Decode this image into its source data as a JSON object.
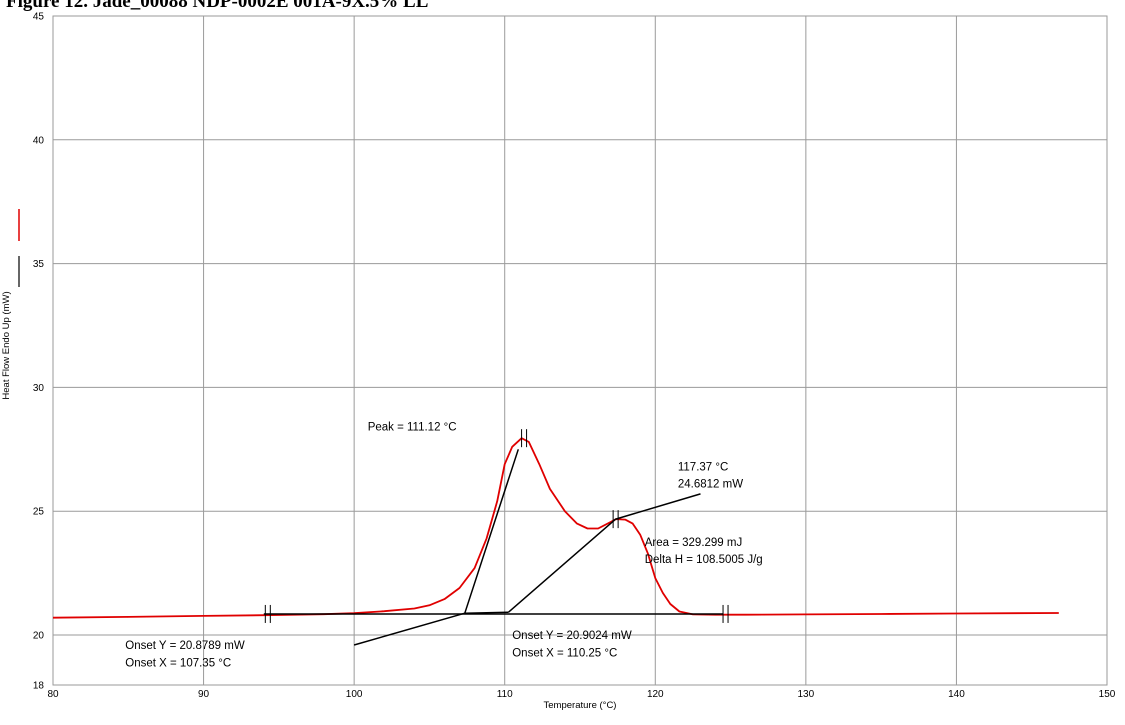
{
  "title": "Figure 12. Jade_00088 NDP-0002E 001A-9X.5% LL",
  "chart_data": {
    "type": "line",
    "title": "Figure 12. Jade_00088 NDP-0002E 001A-9X.5% LL",
    "xlabel": "Temperature (°C)",
    "ylabel": "Heat Flow Endo Up (mW)",
    "xlim": [
      80,
      150
    ],
    "ylim": [
      18,
      45
    ],
    "xticks": [
      80,
      90,
      100,
      110,
      120,
      130,
      140,
      150
    ],
    "yticks": [
      18,
      20,
      25,
      30,
      35,
      40,
      45
    ],
    "grid": true,
    "legend": "left",
    "colors": {
      "series": "#e00000",
      "construction": "#000000",
      "grid": "#9a9a9a"
    },
    "series": [
      {
        "color": "#e00000",
        "x": [
          80,
          85,
          90,
          94,
          98,
          100,
          102,
          104,
          105,
          106,
          107,
          108,
          108.8,
          109.5,
          110,
          110.5,
          111.12,
          111.6,
          112.3,
          113,
          114,
          114.8,
          115.5,
          116.2,
          117,
          117.4,
          118,
          118.5,
          119,
          119.5,
          120,
          120.5,
          121,
          121.6,
          122.5,
          124,
          126,
          130,
          135,
          140,
          146.8
        ],
        "y": [
          20.7,
          20.73,
          20.77,
          20.8,
          20.84,
          20.88,
          20.96,
          21.07,
          21.2,
          21.45,
          21.9,
          22.7,
          23.9,
          25.4,
          26.9,
          27.6,
          27.95,
          27.8,
          26.9,
          25.9,
          25.0,
          24.5,
          24.3,
          24.3,
          24.55,
          24.68,
          24.66,
          24.5,
          24.05,
          23.3,
          22.3,
          21.7,
          21.25,
          20.95,
          20.83,
          20.82,
          20.82,
          20.83,
          20.85,
          20.87,
          20.89
        ]
      },
      {
        "color": "#000000",
        "x": [
          94,
          124.5
        ],
        "y": [
          20.85,
          20.85
        ]
      },
      {
        "color": "#000000",
        "x": [
          107.35,
          110.25
        ],
        "y": [
          20.88,
          20.92
        ]
      },
      {
        "color": "#000000",
        "x": [
          107.35,
          110.9
        ],
        "y": [
          20.88,
          27.5
        ]
      },
      {
        "color": "#000000",
        "x": [
          110.25,
          117.37,
          123.0
        ],
        "y": [
          20.92,
          24.68,
          25.7
        ]
      },
      {
        "color": "#000000",
        "x": [
          100.0,
          107.35
        ],
        "y": [
          19.6,
          20.88
        ]
      }
    ],
    "markers": [
      {
        "x": 94.1,
        "y": 20.85
      },
      {
        "x": 111.12,
        "y": 27.95
      },
      {
        "x": 117.2,
        "y": 24.68
      },
      {
        "x": 124.5,
        "y": 20.85
      }
    ],
    "annotations": [
      {
        "text": "Peak = 111.12 °C",
        "x": 100.9,
        "y": 28.25
      },
      {
        "text": "117.37 °C",
        "x": 121.5,
        "y": 26.65
      },
      {
        "text": "24.6812 mW",
        "x": 121.5,
        "y": 25.95
      },
      {
        "text": "Area = 329.299 mJ",
        "x": 119.3,
        "y": 23.6
      },
      {
        "text": "Delta H = 108.5005 J/g",
        "x": 119.3,
        "y": 22.9
      },
      {
        "text": "Onset Y = 20.8789 mW",
        "x": 84.8,
        "y": 19.45
      },
      {
        "text": "Onset X = 107.35 °C",
        "x": 84.8,
        "y": 18.75
      },
      {
        "text": "Onset Y = 20.9024 mW",
        "x": 110.5,
        "y": 19.85
      },
      {
        "text": "Onset X = 110.25 °C",
        "x": 110.5,
        "y": 19.15
      }
    ]
  }
}
